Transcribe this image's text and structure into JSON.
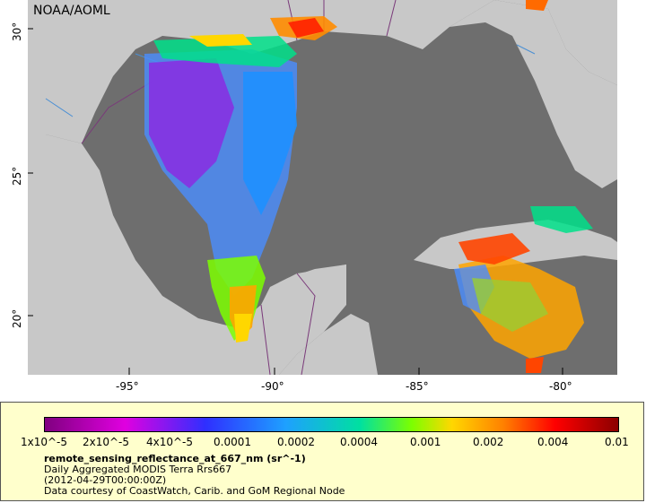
{
  "map": {
    "credit": "NOAA/AOML",
    "lat_labels": [
      "30°",
      "25°",
      "20°"
    ],
    "lon_labels": [
      "-95°",
      "-90°",
      "-85°",
      "-80°"
    ]
  },
  "legend": {
    "tick_labels": [
      "1x10^-5",
      "2x10^-5",
      "4x10^-5",
      "0.0001",
      "0.0002",
      "0.0004",
      "0.001",
      "0.002",
      "0.004",
      "0.01"
    ],
    "variable": "remote_sensing_reflectance_at_667_nm (sr^-1)",
    "product": "Daily Aggregated MODIS Terra Rrs667",
    "time": "(2012-04-29T00:00:00Z)",
    "source": "Data courtesy of CoastWatch, Carib. and GoM Regional Node"
  },
  "colors": {
    "ocean": "#6e6e6e",
    "land": "#c8c8c8",
    "legend_bg": "#ffffcc"
  }
}
